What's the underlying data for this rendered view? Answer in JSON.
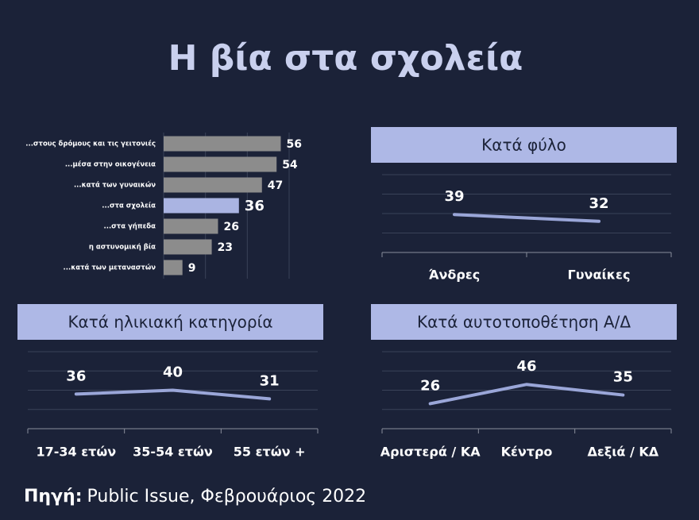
{
  "title": "Η βία στα σχολεία",
  "chart_data": [
    {
      "type": "hbar",
      "categories": [
        "...στους δρόμους και τις γειτονιές",
        "...μέσα στην οικογένεια",
        "...κατά των γυναικών",
        "...στα σχολεία",
        "...στα γήπεδα",
        "η αστυνομική βία",
        "...κατά των μεταναστών"
      ],
      "values": [
        56,
        54,
        47,
        36,
        26,
        23,
        9
      ],
      "colors": [
        "#8c8c8c",
        "#8c8c8c",
        "#8c8c8c",
        "#aab4e2",
        "#8c8c8c",
        "#8c8c8c",
        "#8c8c8c"
      ],
      "xlim": [
        0,
        60
      ],
      "xticks": [
        0,
        20,
        40,
        60
      ],
      "grid": true
    },
    {
      "type": "line",
      "title": "Κατά φύλο",
      "categories": [
        "Άνδρες",
        "Γυναίκες"
      ],
      "values": [
        39,
        32
      ],
      "color": "#9aa6d8",
      "ylim": [
        0,
        80
      ],
      "yticks": [
        0,
        20,
        40,
        60,
        80
      ],
      "grid": true
    },
    {
      "type": "line",
      "title": "Κατά ηλικιακή κατηγορία",
      "categories": [
        "17-34 ετών",
        "35-54 ετών",
        "55 ετών +"
      ],
      "values": [
        36,
        40,
        31
      ],
      "color": "#9aa6d8",
      "ylim": [
        0,
        80
      ],
      "yticks": [
        0,
        20,
        40,
        60,
        80
      ],
      "grid": true
    },
    {
      "type": "line",
      "title": "Κατά αυτοτοποθέτηση Α/Δ",
      "categories": [
        "Αριστερά / ΚΑ",
        "Κέντρο",
        "Δεξιά / ΚΔ"
      ],
      "values": [
        26,
        46,
        35
      ],
      "color": "#9aa6d8",
      "ylim": [
        0,
        80
      ],
      "yticks": [
        0,
        20,
        40,
        60,
        80
      ],
      "grid": true
    }
  ],
  "source": {
    "label": "Πηγή:",
    "text": "Public Issue, Φεβρουάριος 2022"
  }
}
